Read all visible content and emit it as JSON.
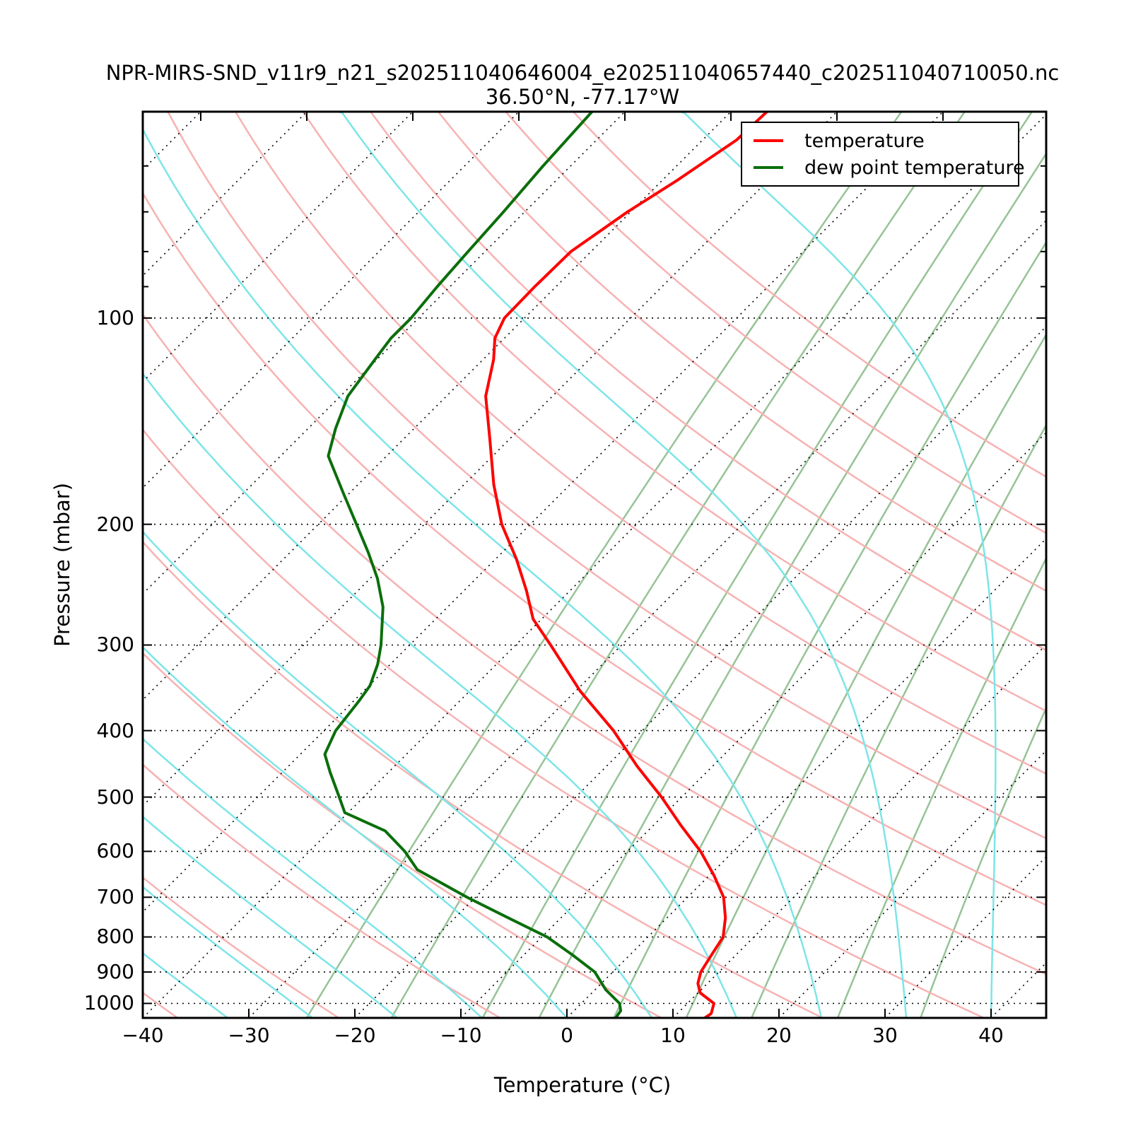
{
  "title": "NPR-MIRS-SND_v11r9_n21_s202511040646004_e202511040657440_c202511040710050.nc",
  "subtitle": "36.50°N, -77.17°W",
  "legend": {
    "items": [
      {
        "label": "temperature",
        "color": "#ff0000"
      },
      {
        "label": "dew point temperature",
        "color": "#0b6e0b"
      }
    ]
  },
  "chart_data": {
    "type": "line",
    "chart_kind": "skew-T log-P sounding",
    "xlabel": "Temperature (°C)",
    "ylabel": "Pressure (mbar)",
    "x_ticks": [
      -40,
      -30,
      -20,
      -10,
      0,
      10,
      20,
      30,
      40
    ],
    "y_ticks": [
      100,
      200,
      300,
      400,
      500,
      600,
      700,
      800,
      900,
      1000
    ],
    "y_minor_ticks": [
      60,
      70,
      80,
      90
    ],
    "pressure_limits": [
      1050,
      50
    ],
    "temp_axis_limits": [
      -40,
      45.2
    ],
    "skew_deg": 45,
    "grid": true,
    "legend_position": "upper right",
    "series": [
      {
        "name": "temperature",
        "color": "#ff0000",
        "width": 4,
        "points": [
          [
            1050,
            13.0
          ],
          [
            1035,
            13.2
          ],
          [
            1000,
            12.5
          ],
          [
            965,
            10.2
          ],
          [
            935,
            9.1
          ],
          [
            900,
            8.3
          ],
          [
            850,
            7.7
          ],
          [
            800,
            7.1
          ],
          [
            750,
            5.5
          ],
          [
            700,
            3.4
          ],
          [
            650,
            0.4
          ],
          [
            600,
            -3.1
          ],
          [
            550,
            -7.4
          ],
          [
            500,
            -11.9
          ],
          [
            450,
            -17.2
          ],
          [
            400,
            -22.7
          ],
          [
            350,
            -29.6
          ],
          [
            300,
            -36.7
          ],
          [
            275,
            -40.8
          ],
          [
            250,
            -44.1
          ],
          [
            225,
            -48.0
          ],
          [
            200,
            -52.7
          ],
          [
            175,
            -57.2
          ],
          [
            150,
            -61.9
          ],
          [
            130,
            -66.3
          ],
          [
            115,
            -69.0
          ],
          [
            107,
            -70.9
          ],
          [
            100,
            -71.9
          ],
          [
            90,
            -72.0
          ],
          [
            80,
            -71.9
          ],
          [
            70,
            -70.3
          ],
          [
            63,
            -68.6
          ],
          [
            55,
            -66.8
          ],
          [
            50,
            -66.6
          ]
        ]
      },
      {
        "name": "dew point temperature",
        "color": "#0b6e0b",
        "width": 4,
        "points": [
          [
            1050,
            4.6
          ],
          [
            1025,
            4.4
          ],
          [
            1000,
            3.6
          ],
          [
            955,
            1.0
          ],
          [
            900,
            -1.7
          ],
          [
            850,
            -5.4
          ],
          [
            800,
            -9.5
          ],
          [
            750,
            -15.0
          ],
          [
            700,
            -20.8
          ],
          [
            638,
            -28.1
          ],
          [
            600,
            -31.0
          ],
          [
            560,
            -34.8
          ],
          [
            527,
            -40.3
          ],
          [
            500,
            -42.3
          ],
          [
            460,
            -45.5
          ],
          [
            433,
            -47.7
          ],
          [
            400,
            -48.9
          ],
          [
            362,
            -49.5
          ],
          [
            344,
            -49.9
          ],
          [
            320,
            -51.2
          ],
          [
            300,
            -52.7
          ],
          [
            264,
            -56.1
          ],
          [
            240,
            -59.3
          ],
          [
            220,
            -62.6
          ],
          [
            200,
            -66.4
          ],
          [
            180,
            -70.6
          ],
          [
            159,
            -75.5
          ],
          [
            145,
            -77.4
          ],
          [
            130,
            -79.3
          ],
          [
            115,
            -80.2
          ],
          [
            107,
            -80.7
          ],
          [
            100,
            -80.7
          ],
          [
            90,
            -81.2
          ],
          [
            80,
            -81.6
          ],
          [
            70,
            -82.0
          ],
          [
            60,
            -82.6
          ],
          [
            50,
            -83.1
          ]
        ]
      }
    ],
    "background": {
      "isotherms": {
        "tmin": -120,
        "tmax": 40,
        "step": 10,
        "color": "#000000",
        "style": "dotted"
      },
      "isobars": {
        "levels": [
          100,
          200,
          300,
          400,
          500,
          600,
          700,
          800,
          900,
          1000
        ],
        "color": "#000000",
        "style": "dotted"
      },
      "dry_adiabats": {
        "theta_min": -40,
        "theta_max": 170,
        "step": 15,
        "color": "#f7b2b2"
      },
      "moist_adiabats": {
        "t0_min": -72,
        "t0_max": 40,
        "step": 8,
        "color": "#7de5e8"
      },
      "mixing_ratio": {
        "values_g_per_kg": [
          0.5,
          1,
          2,
          3,
          5,
          8,
          12,
          20,
          32
        ],
        "color": "#96c396"
      }
    }
  }
}
